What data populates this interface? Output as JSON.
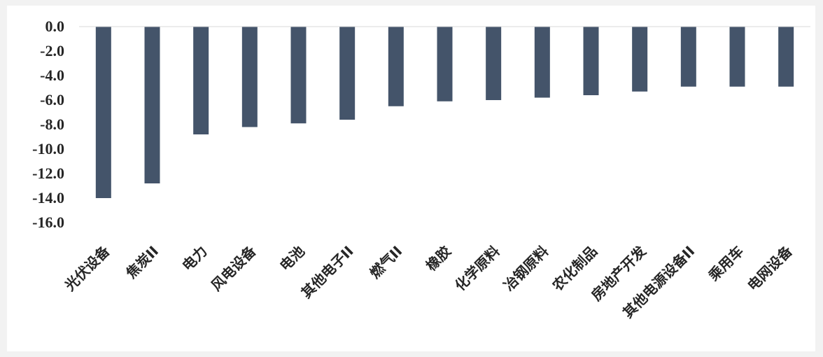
{
  "chart_data": {
    "type": "bar",
    "categories": [
      "光伏设备",
      "焦炭II",
      "电力",
      "风电设备",
      "电池",
      "其他电子II",
      "燃气II",
      "橡胶",
      "化学原料",
      "冶钢原料",
      "农化制品",
      "房地产开发",
      "其他电源设备II",
      "乘用车",
      "电网设备"
    ],
    "values": [
      -14.0,
      -12.8,
      -8.8,
      -8.2,
      -7.9,
      -7.6,
      -6.5,
      -6.1,
      -6.0,
      -5.8,
      -5.6,
      -5.3,
      -4.9,
      -4.9,
      -4.9
    ],
    "ylim": [
      -16,
      0
    ],
    "yticks": [
      "0.0",
      "-2.0",
      "-4.0",
      "-6.0",
      "-8.0",
      "-10.0",
      "-12.0",
      "-14.0",
      "-16.0"
    ],
    "title": "",
    "xlabel": "",
    "ylabel": "",
    "grid": false,
    "bar_color": "#44546a"
  }
}
